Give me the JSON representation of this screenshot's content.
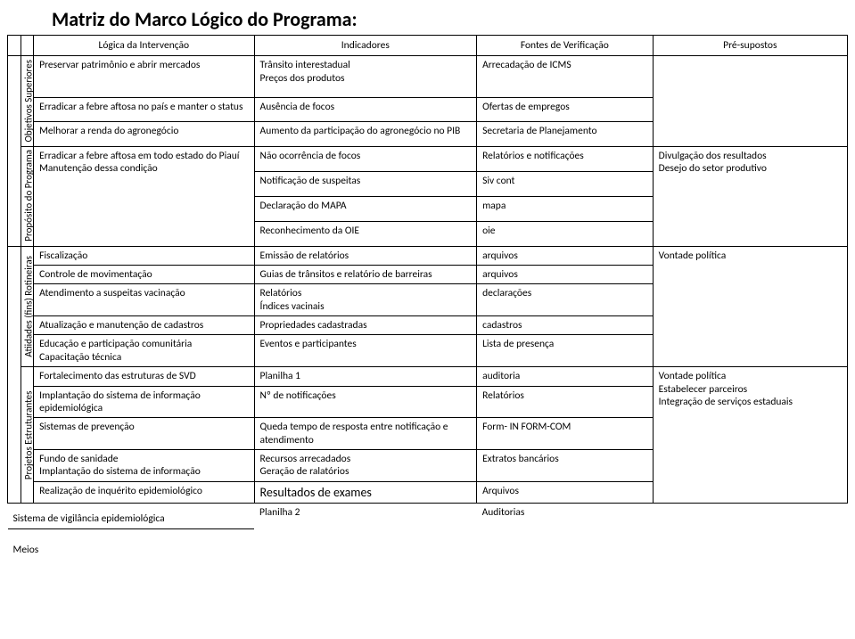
{
  "title": "Matriz do Marco Lógico do Programa:",
  "headers": {
    "col1": "Lógica da Intervenção",
    "col2": "Indicadores",
    "col3": "Fontes de Verificação",
    "col4": "Pré-supostos"
  },
  "sections": {
    "s1": "Objetivos Superiores",
    "s2": "Propósito do Programa",
    "s3": "Atiidades (fins) Rotineiras",
    "s4": "Projetos Estruturantes"
  },
  "r": {
    "a1l": "Preservar patrimônio e abrir mercados",
    "a1i": "Trânsito interestadual\nPreços dos produtos",
    "a1f": "Arrecadação de ICMS",
    "a2l": "Erradicar a febre aftosa no país e manter o status",
    "a2i": "Ausência de focos",
    "a2f": "Ofertas de empregos",
    "a3l": "Melhorar a renda do agronegócio",
    "a3i": "Aumento da participação do agronegócio no PIB",
    "a3f": "Secretaria de Planejamento",
    "b1l": "Erradicar a febre aftosa em todo estado do Piauí\nManutenção dessa condição",
    "b1i": "Não ocorrência de focos",
    "b1f": "Relatórios e notificações",
    "b1p": "Divulgação dos resultados\nDesejo do setor produtivo",
    "b2i": "Notificação de suspeitas",
    "b2f": "Siv cont",
    "b3i": "Declaração do MAPA",
    "b3f": "mapa",
    "b4i": "Reconhecimento da OIE",
    "b4f": "oie",
    "c1l": "Fiscalização",
    "c1i": "Emissão de relatórios",
    "c1f": "arquivos",
    "c1p": "Vontade política",
    "c2l": "Controle de movimentação",
    "c2i": "Guias de trânsitos e relatório de barreiras",
    "c2f": "arquivos",
    "c3l": "Atendimento a suspeitas vacinação",
    "c3i": "Relatórios\nÍndices vacinais",
    "c3f": "declarações",
    "c4l": "Atualização e manutenção de cadastros",
    "c4i": "Propriedades cadastradas",
    "c4f": "cadastros",
    "c5l": "Educação e participação comunitária\nCapacitação técnica",
    "c5i": "Eventos e participantes",
    "c5f": "Lista de presença",
    "d1l": "Fortalecimento das estruturas de SVD",
    "d1i": "Planilha 1",
    "d1f": "auditoria",
    "d1p": "Vontade política\nEstabelecer parceiros\nIntegração de serviços estaduais",
    "d2l": "Implantação do sistema de informação epidemiológica",
    "d2i": "Nº de notificações",
    "d2f": "Relatórios",
    "d3l": "Sistemas de prevenção",
    "d3i": "Queda tempo de resposta entre notificação e atendimento",
    "d3f": "Form- IN FORM-COM",
    "d4l": "Fundo de sanidade\nImplantação do sistema de informação",
    "d4i": "Recursos arrecadados\nGeração de ralatórios",
    "d4f": "Extratos bancários",
    "d5l": "Realização de inquérito epidemiológico",
    "d5i": "Resultados de exames",
    "d5f": "Arquivos"
  },
  "footer": {
    "left": "Sistema de vigilância epidemiológica",
    "mid": "Planilha 2",
    "right": "Auditorias",
    "meios": "Meios"
  },
  "style": {
    "text_color": "#000000",
    "bg_color": "#ffffff",
    "border_color": "#000000",
    "title_fontsize": 22,
    "body_fontsize": 11.5
  }
}
